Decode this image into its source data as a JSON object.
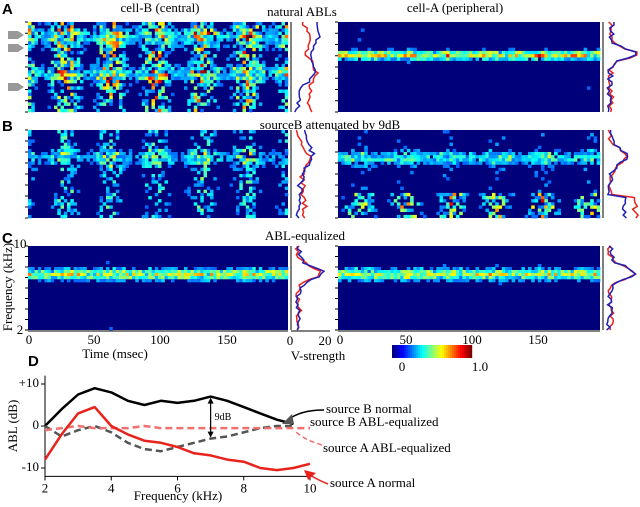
{
  "figure": {
    "panel_labels": [
      "A",
      "B",
      "C",
      "D"
    ],
    "column_titles": [
      "cell-B (central)",
      "cell-A (peripheral)"
    ],
    "row_titles": [
      "natural ABLs",
      "sourceB attenuated by 9dB",
      "ABL-equalized"
    ],
    "frequency_label": "Frequency (kHz)",
    "frequency_ticks": [
      "10",
      "2"
    ],
    "time_label": "Time (msec)",
    "time_ticks": [
      "0",
      "50",
      "100",
      "150"
    ],
    "vstrength_label": "V-strength",
    "vstrength_ticks": [
      "0",
      "20"
    ],
    "colorbar_ticks": [
      "0",
      "1.0"
    ]
  },
  "chart_data": {
    "type": "line",
    "xlabel": "Frequency (kHz)",
    "ylabel": "ABL (dB)",
    "x": [
      2,
      2.5,
      3,
      3.5,
      4,
      4.5,
      5,
      5.5,
      6,
      6.5,
      7,
      7.5,
      8,
      8.5,
      9,
      9.5,
      10
    ],
    "xlim": [
      2,
      10
    ],
    "xticks": [
      2,
      4,
      6,
      8,
      10
    ],
    "ylim": [
      -12,
      12
    ],
    "yticks": [
      {
        "value": 10,
        "label": "+10"
      },
      0,
      -10
    ],
    "annotation": "9dB",
    "series": [
      {
        "name": "source B normal",
        "color": "#000000",
        "dashed": false,
        "values": [
          0,
          4,
          7.5,
          9,
          8,
          6,
          5,
          6,
          5.5,
          6,
          7,
          6,
          4.5,
          3,
          1.5,
          0.5,
          null
        ]
      },
      {
        "name": "source B ABL-equalized",
        "color": "#555555",
        "dashed": true,
        "values": [
          0,
          -2.5,
          -1,
          0,
          -1.5,
          -4,
          -5.5,
          -6,
          -5,
          -4,
          -3,
          -2.5,
          -1.5,
          -0.5,
          0,
          0,
          null
        ]
      },
      {
        "name": "source A ABL-equalized",
        "color": "#f07070",
        "dashed": true,
        "values": [
          -1,
          -0.5,
          0,
          -0.5,
          -0.5,
          -0.5,
          0,
          -0.5,
          -0.5,
          -0.5,
          -0.5,
          -0.5,
          -0.5,
          -0.5,
          -0.5,
          -0.5,
          -0.5
        ]
      },
      {
        "name": "source A normal",
        "color": "#e8231c",
        "dashed": false,
        "values": [
          -8,
          -2,
          3,
          4.5,
          0,
          -2,
          -3.5,
          -4,
          -5,
          -6.5,
          -7,
          -8,
          -8.5,
          -10,
          -10.5,
          -10,
          -9
        ]
      }
    ]
  }
}
